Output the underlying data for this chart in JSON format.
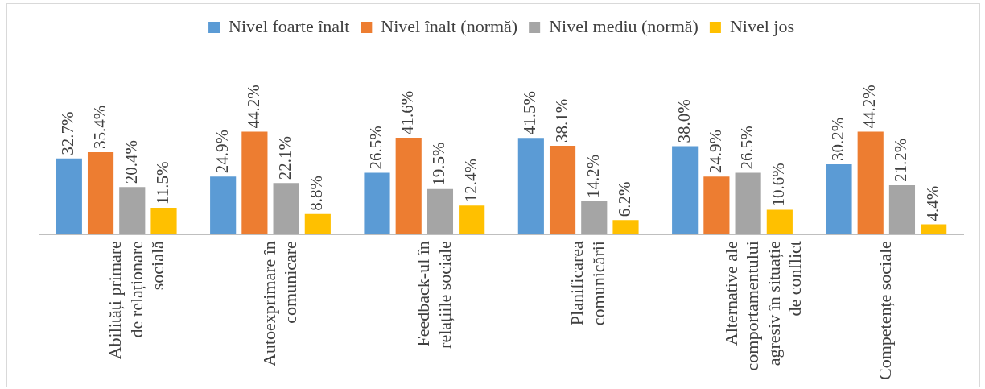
{
  "chart_data": {
    "type": "bar",
    "categories": [
      "Abilități primare de relaționare socială",
      "Autoexprimare în comunicare",
      "Feedback-ul în relațiile sociale",
      "Planificarea comunicării",
      "Alternative ale comportamentului agresiv în situație de conflict",
      "Competențe sociale"
    ],
    "series": [
      {
        "name": "Nivel foarte înalt",
        "color": "#5b9bd5",
        "values": [
          32.7,
          24.9,
          26.5,
          41.5,
          38.0,
          30.2
        ],
        "value_labels": [
          "32.7%",
          "24.9%",
          "26.5%",
          "41.5%",
          "38.0%",
          "30.2%"
        ]
      },
      {
        "name": "Nivel înalt (normă)",
        "color": "#ed7d31",
        "values": [
          35.4,
          44.2,
          41.6,
          38.1,
          24.9,
          44.2
        ],
        "value_labels": [
          "35.4%",
          "44.2%",
          "41.6%",
          "38.1%",
          "24.9%",
          "44.2%"
        ]
      },
      {
        "name": "Nivel mediu (normă)",
        "color": "#a5a5a5",
        "values": [
          20.4,
          22.1,
          19.5,
          14.2,
          26.5,
          21.2
        ],
        "value_labels": [
          "20.4%",
          "22.1%",
          "19.5%",
          "14.2%",
          "26.5%",
          "21.2%"
        ]
      },
      {
        "name": "Nivel jos",
        "color": "#ffc000",
        "values": [
          11.5,
          8.8,
          12.4,
          6.2,
          10.6,
          4.4
        ],
        "value_labels": [
          "11.5%",
          "8.8%",
          "12.4%",
          "6.2%",
          "10.6%",
          "4.4%"
        ]
      }
    ],
    "legend": "top",
    "grid": false
  }
}
